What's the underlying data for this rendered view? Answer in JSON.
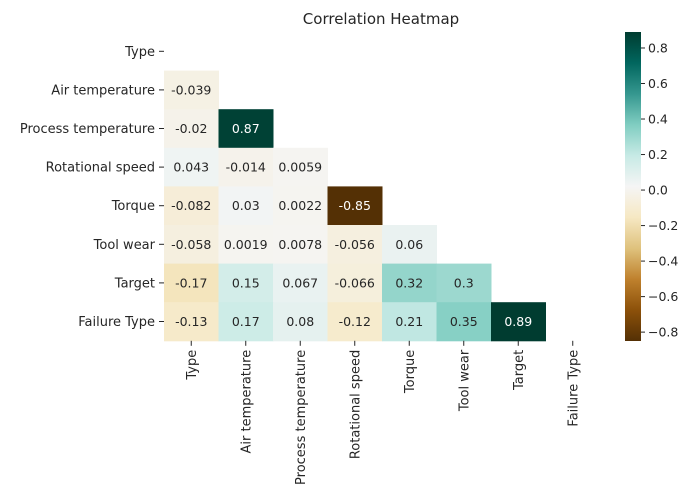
{
  "chart_data": {
    "type": "heatmap",
    "title": "Correlation Heatmap",
    "xlabel": "",
    "ylabel": "",
    "labels": [
      "Type",
      "Air temperature",
      "Process temperature",
      "Rotational speed",
      "Torque",
      "Tool wear",
      "Target",
      "Failure Type"
    ],
    "mask": "upper triangle including diagonal",
    "cells": [
      {
        "row": 1,
        "col": 0,
        "value": -0.039,
        "label": "-0.039"
      },
      {
        "row": 2,
        "col": 0,
        "value": -0.02,
        "label": "-0.02"
      },
      {
        "row": 2,
        "col": 1,
        "value": 0.87,
        "label": "0.87"
      },
      {
        "row": 3,
        "col": 0,
        "value": 0.043,
        "label": "0.043"
      },
      {
        "row": 3,
        "col": 1,
        "value": -0.014,
        "label": "-0.014"
      },
      {
        "row": 3,
        "col": 2,
        "value": 0.0059,
        "label": "0.0059"
      },
      {
        "row": 4,
        "col": 0,
        "value": -0.082,
        "label": "-0.082"
      },
      {
        "row": 4,
        "col": 1,
        "value": 0.03,
        "label": "0.03"
      },
      {
        "row": 4,
        "col": 2,
        "value": 0.0022,
        "label": "0.0022"
      },
      {
        "row": 4,
        "col": 3,
        "value": -0.85,
        "label": "-0.85"
      },
      {
        "row": 5,
        "col": 0,
        "value": -0.058,
        "label": "-0.058"
      },
      {
        "row": 5,
        "col": 1,
        "value": 0.0019,
        "label": "0.0019"
      },
      {
        "row": 5,
        "col": 2,
        "value": 0.0078,
        "label": "0.0078"
      },
      {
        "row": 5,
        "col": 3,
        "value": -0.056,
        "label": "-0.056"
      },
      {
        "row": 5,
        "col": 4,
        "value": 0.06,
        "label": "0.06"
      },
      {
        "row": 6,
        "col": 0,
        "value": -0.17,
        "label": "-0.17"
      },
      {
        "row": 6,
        "col": 1,
        "value": 0.15,
        "label": "0.15"
      },
      {
        "row": 6,
        "col": 2,
        "value": 0.067,
        "label": "0.067"
      },
      {
        "row": 6,
        "col": 3,
        "value": -0.066,
        "label": "-0.066"
      },
      {
        "row": 6,
        "col": 4,
        "value": 0.32,
        "label": "0.32"
      },
      {
        "row": 6,
        "col": 5,
        "value": 0.3,
        "label": "0.3"
      },
      {
        "row": 7,
        "col": 0,
        "value": -0.13,
        "label": "-0.13"
      },
      {
        "row": 7,
        "col": 1,
        "value": 0.17,
        "label": "0.17"
      },
      {
        "row": 7,
        "col": 2,
        "value": 0.08,
        "label": "0.08"
      },
      {
        "row": 7,
        "col": 3,
        "value": -0.12,
        "label": "-0.12"
      },
      {
        "row": 7,
        "col": 4,
        "value": 0.21,
        "label": "0.21"
      },
      {
        "row": 7,
        "col": 5,
        "value": 0.35,
        "label": "0.35"
      },
      {
        "row": 7,
        "col": 6,
        "value": 0.89,
        "label": "0.89"
      }
    ],
    "colorbar": {
      "colormap": "BrBG",
      "range": [
        -0.85,
        0.89
      ],
      "ticks": [
        0.8,
        0.6,
        0.4,
        0.2,
        0.0,
        -0.2,
        -0.4,
        -0.6,
        -0.8
      ],
      "tick_labels": [
        "0.8",
        "0.6",
        "0.4",
        "0.2",
        "0.0",
        "−0.2",
        "−0.4",
        "−0.6",
        "−0.8"
      ]
    },
    "colormap_stops": [
      "#543005",
      "#8c510a",
      "#bf812d",
      "#dfc27d",
      "#f6e8c3",
      "#f5f5f5",
      "#c7eae5",
      "#80cdc1",
      "#35978f",
      "#01665e",
      "#003c30"
    ]
  }
}
